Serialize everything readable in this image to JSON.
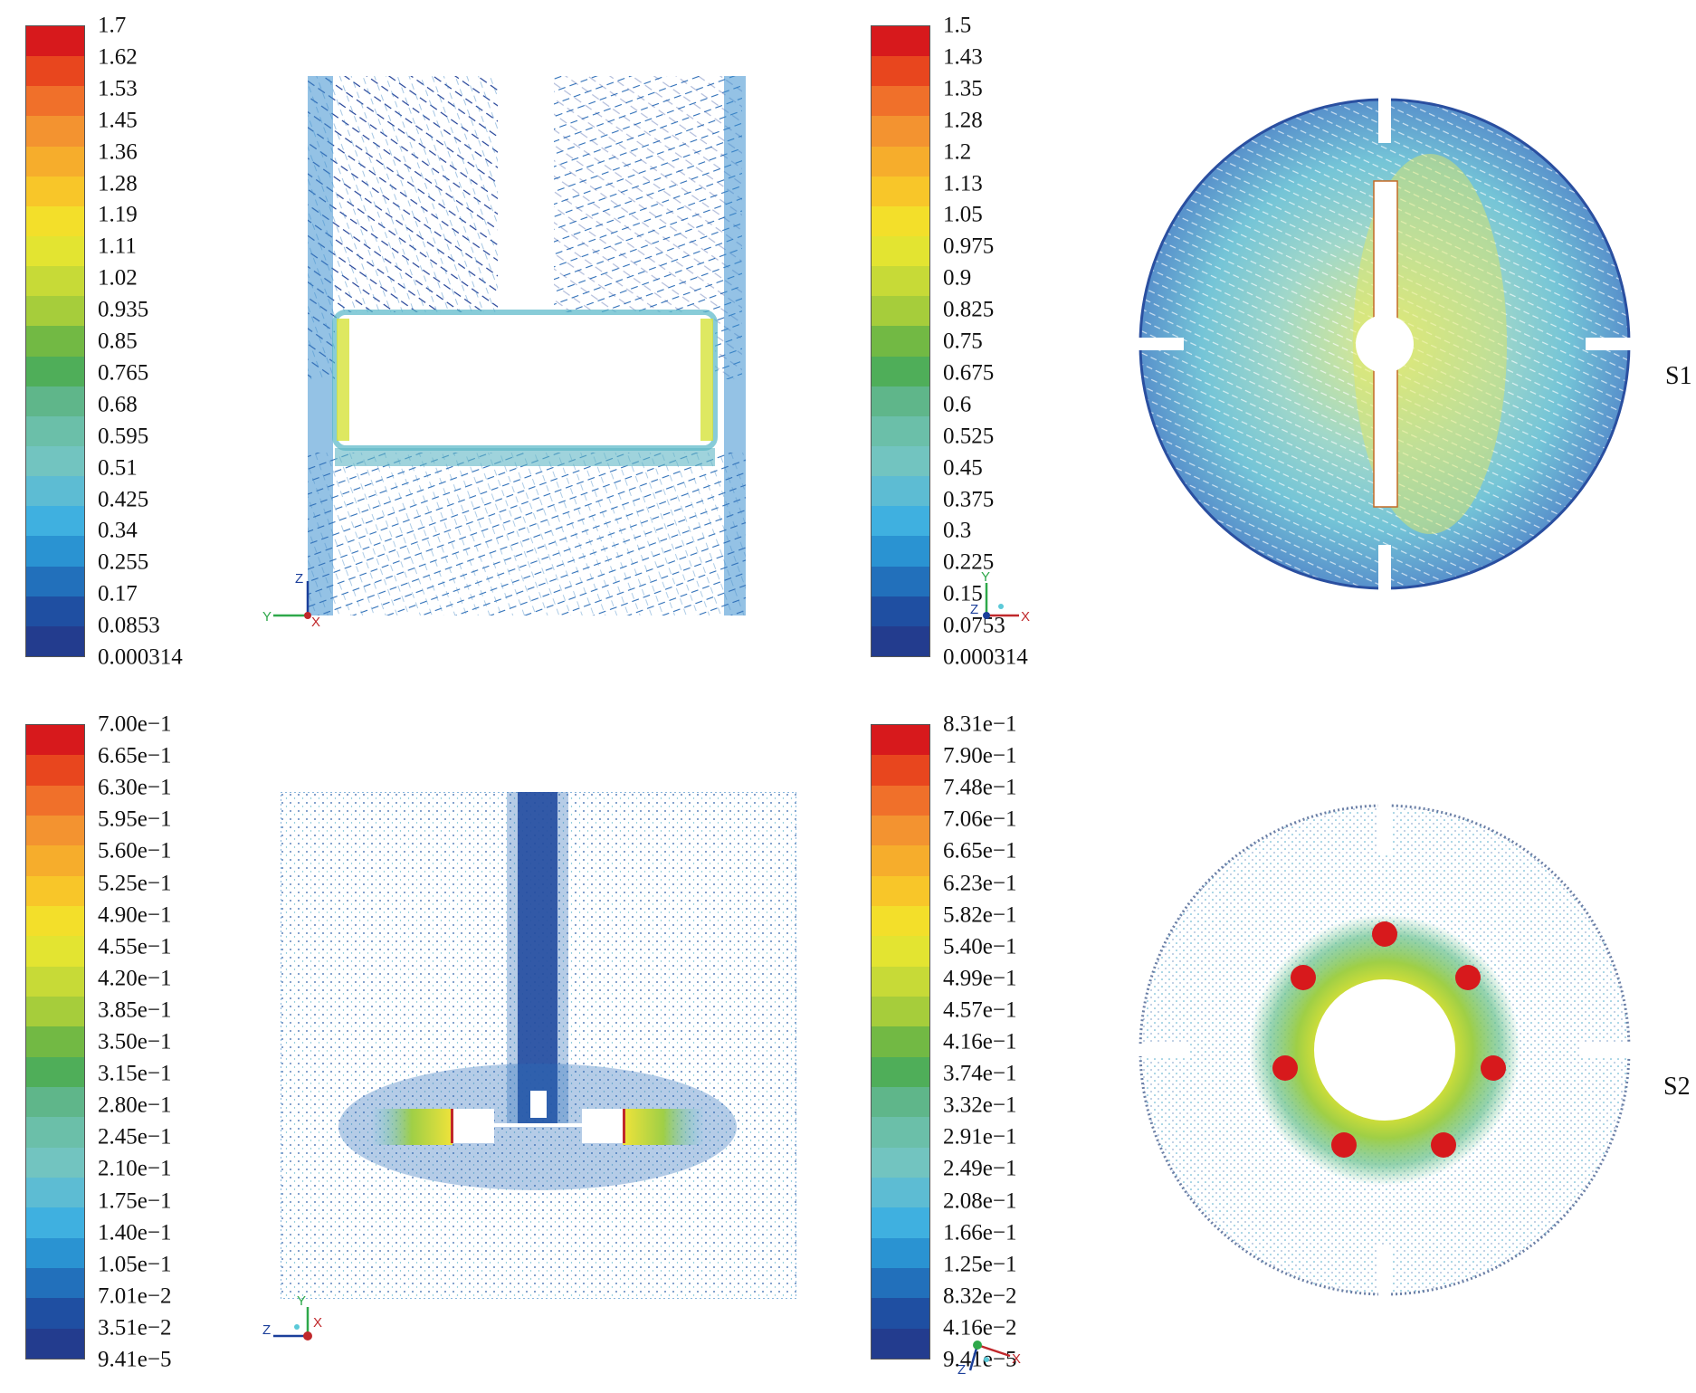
{
  "panels": [
    {
      "id": "s1-vertical",
      "legend": {
        "labels": [
          "1.7",
          "1.62",
          "1.53",
          "1.45",
          "1.36",
          "1.28",
          "1.19",
          "1.11",
          "1.02",
          "0.935",
          "0.85",
          "0.765",
          "0.68",
          "0.595",
          "0.51",
          "0.425",
          "0.34",
          "0.255",
          "0.17",
          "0.0853",
          "0.000314"
        ]
      },
      "axes": {
        "vertical": "Z",
        "horizontal": "Y",
        "center": "X"
      }
    },
    {
      "id": "s1-horizontal",
      "legend": {
        "labels": [
          "1.5",
          "1.43",
          "1.35",
          "1.28",
          "1.2",
          "1.13",
          "1.05",
          "0.975",
          "0.9",
          "0.825",
          "0.75",
          "0.675",
          "0.6",
          "0.525",
          "0.45",
          "0.375",
          "0.3",
          "0.225",
          "0.15",
          "0.0753",
          "0.000314"
        ]
      },
      "axes": {
        "vertical": "Y",
        "horizontal": "X",
        "center": "Z"
      },
      "row_label": "S1"
    },
    {
      "id": "s2-vertical",
      "legend": {
        "labels": [
          "7.00e−1",
          "6.65e−1",
          "6.30e−1",
          "5.95e−1",
          "5.60e−1",
          "5.25e−1",
          "4.90e−1",
          "4.55e−1",
          "4.20e−1",
          "3.85e−1",
          "3.50e−1",
          "3.15e−1",
          "2.80e−1",
          "2.45e−1",
          "2.10e−1",
          "1.75e−1",
          "1.40e−1",
          "1.05e−1",
          "7.01e−2",
          "3.51e−2",
          "9.41e−5"
        ]
      },
      "axes": {
        "vertical": "Y",
        "horizontal": "Z",
        "center": "X"
      }
    },
    {
      "id": "s2-horizontal",
      "legend": {
        "labels": [
          "8.31e−1",
          "7.90e−1",
          "7.48e−1",
          "7.06e−1",
          "6.65e−1",
          "6.23e−1",
          "5.82e−1",
          "5.40e−1",
          "4.99e−1",
          "4.57e−1",
          "4.16e−1",
          "3.74e−1",
          "3.32e−1",
          "2.91e−1",
          "2.49e−1",
          "2.08e−1",
          "1.66e−1",
          "1.25e−1",
          "8.32e−2",
          "4.16e−2",
          "9.41e−5"
        ]
      },
      "axes": {
        "vertical": "",
        "horizontal": "X",
        "center": "Z"
      },
      "row_label": "S2"
    }
  ],
  "colormap": [
    "#d7191c",
    "#e8461e",
    "#f0702a",
    "#f39330",
    "#f6ad2c",
    "#f8c629",
    "#f3df2a",
    "#e3e431",
    "#c7da37",
    "#a6cd3b",
    "#72b944",
    "#4fae59",
    "#5fb68a",
    "#6bbfa9",
    "#72c4c0",
    "#5dbcd3",
    "#3fb0e0",
    "#2a93d2",
    "#2270bb",
    "#1f4fa2",
    "#233c8e"
  ],
  "icons": {
    "axis_triad": "axis-triad-icon"
  }
}
